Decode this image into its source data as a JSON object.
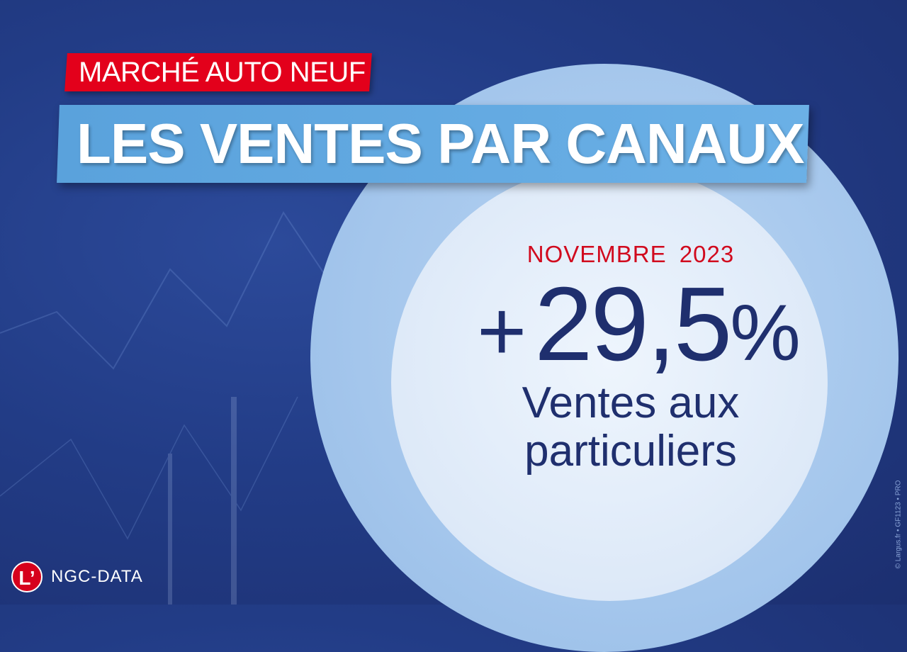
{
  "tag": "MARCHÉ AUTO NEUF",
  "title": "LES VENTES PAR CANAUX",
  "period": "NOVEMBRE  2023",
  "figure": {
    "sign": "+",
    "value": "29,5",
    "unit": "%"
  },
  "label_line1": "Ventes aux",
  "label_line2": "particuliers",
  "logo": {
    "mark": "L’",
    "brand": "NGC-DATA"
  },
  "copyright": "© Largus.fr • GF1123 • PRO",
  "colors": {
    "red": "#e3001b",
    "blue_banner": "#5aa2dc",
    "navy": "#1f2f6e",
    "background": "#223c86"
  }
}
